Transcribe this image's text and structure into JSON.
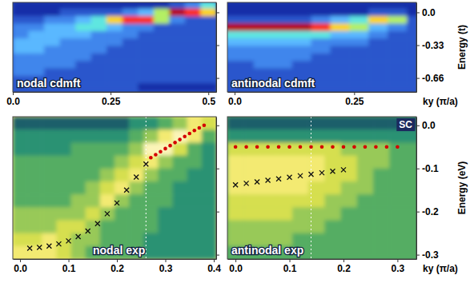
{
  "chart_data": [
    {
      "type": "heatmap",
      "title": "nodal cdmft",
      "color": "jet",
      "x": [
        0.02,
        0.06,
        0.1,
        0.14,
        0.18,
        0.22,
        0.26,
        0.3,
        0.34,
        0.38,
        0.42,
        0.46,
        0.5
      ],
      "y": [
        0.075,
        0,
        -0.075,
        -0.15,
        -0.225,
        -0.3,
        -0.375,
        -0.45,
        -0.525,
        -0.6,
        -0.675,
        -0.75
      ],
      "cells": [
        [
          1,
          1,
          1,
          1,
          1,
          1,
          1,
          1,
          1,
          1,
          2,
          3,
          5
        ],
        [
          1,
          1,
          1,
          2,
          2,
          2,
          2,
          3,
          4,
          6,
          9,
          8,
          7
        ],
        [
          2,
          2,
          3,
          3,
          4,
          5,
          7,
          8,
          8,
          6,
          3,
          2,
          2
        ],
        [
          3,
          3,
          4,
          4,
          5,
          5,
          4,
          3,
          3,
          2,
          2,
          2,
          2
        ],
        [
          3,
          4,
          4,
          4,
          4,
          3,
          3,
          3,
          2,
          2,
          2,
          2,
          2
        ],
        [
          4,
          4,
          4,
          3,
          3,
          3,
          3,
          2,
          2,
          2,
          2,
          2,
          2
        ],
        [
          4,
          4,
          3,
          3,
          3,
          3,
          2,
          2,
          2,
          2,
          2,
          2,
          2
        ],
        [
          3,
          3,
          3,
          3,
          3,
          2,
          2,
          2,
          2,
          2,
          2,
          2,
          2
        ],
        [
          3,
          3,
          3,
          3,
          2,
          2,
          2,
          2,
          2,
          2,
          2,
          2,
          2
        ],
        [
          3,
          3,
          2,
          2,
          2,
          2,
          2,
          2,
          2,
          2,
          2,
          2,
          2
        ],
        [
          2,
          2,
          2,
          2,
          2,
          2,
          2,
          2,
          2,
          2,
          2,
          2,
          2
        ],
        [
          2,
          2,
          2,
          2,
          2,
          2,
          2,
          2,
          1,
          1,
          1,
          1,
          1
        ]
      ],
      "zlim": [
        0,
        9
      ],
      "xlim": [
        0,
        0.52
      ],
      "ylim": [
        -0.8,
        0.1
      ],
      "xticks": [
        {
          "value": 0,
          "label": "0.0"
        },
        0.25,
        0.5
      ],
      "yticks": [
        {
          "value": 0,
          "label": "0.0"
        },
        -0.33,
        -0.66
      ],
      "tick_labels": "x"
    },
    {
      "type": "heatmap",
      "title": "antinodal cdmft",
      "color": "jet",
      "x": [
        -0.02,
        0.02,
        0.06,
        0.1,
        0.14,
        0.18,
        0.22,
        0.26,
        0.3,
        0.34,
        0.38
      ],
      "y": [
        0.075,
        0,
        -0.075,
        -0.15,
        -0.225,
        -0.3,
        -0.375,
        -0.45,
        -0.525,
        -0.6,
        -0.675,
        -0.75
      ],
      "cells": [
        [
          1,
          1,
          1,
          1,
          1,
          1,
          1,
          1,
          1,
          1,
          1
        ],
        [
          1,
          1,
          1,
          1,
          1,
          1,
          1,
          1,
          2,
          2,
          1
        ],
        [
          2,
          2,
          2,
          2,
          2,
          3,
          4,
          5,
          7,
          6,
          2
        ],
        [
          9,
          9,
          9,
          9,
          9,
          8,
          7,
          6,
          4,
          3,
          2
        ],
        [
          5,
          5,
          5,
          5,
          5,
          5,
          4,
          4,
          3,
          2,
          2
        ],
        [
          4,
          4,
          4,
          4,
          4,
          3,
          3,
          3,
          2,
          2,
          2
        ],
        [
          3,
          3,
          3,
          3,
          3,
          3,
          2,
          2,
          2,
          2,
          2
        ],
        [
          3,
          3,
          3,
          3,
          3,
          2,
          2,
          2,
          2,
          2,
          2
        ],
        [
          2,
          2,
          3,
          3,
          2,
          2,
          2,
          2,
          2,
          2,
          2
        ],
        [
          2,
          2,
          2,
          2,
          2,
          2,
          2,
          2,
          2,
          2,
          2
        ],
        [
          2,
          2,
          2,
          2,
          2,
          2,
          2,
          2,
          2,
          2,
          2
        ],
        [
          2,
          2,
          2,
          2,
          2,
          2,
          2,
          2,
          2,
          2,
          2
        ]
      ],
      "zlim": [
        0,
        9
      ],
      "xlim": [
        -0.015,
        0.38
      ],
      "ylim": [
        -0.8,
        0.1
      ],
      "xticks": [
        {
          "value": 0,
          "label": "0.0"
        },
        0.25
      ],
      "yticks": [
        {
          "value": 0,
          "label": "0.0"
        },
        -0.33,
        -0.66
      ],
      "x_label": "ky (π/a)",
      "y_label": "Energy (t)"
    },
    {
      "type": "heatmap",
      "title": "nodal exp",
      "color": "green-yellow",
      "x": [
        0,
        0.03,
        0.06,
        0.09,
        0.12,
        0.15,
        0.18,
        0.21,
        0.24,
        0.27,
        0.3,
        0.33,
        0.36,
        0.39
      ],
      "y": [
        0.005,
        -0.025,
        -0.055,
        -0.085,
        -0.115,
        -0.145,
        -0.175,
        -0.205,
        -0.235,
        -0.265,
        -0.295
      ],
      "cells": [
        [
          0,
          0,
          0,
          0,
          0,
          0,
          0,
          0,
          1,
          1,
          2,
          3,
          5,
          4
        ],
        [
          1,
          1,
          1,
          1,
          1,
          1,
          1,
          1,
          2,
          3,
          5,
          6,
          5,
          2
        ],
        [
          1,
          1,
          1,
          1,
          2,
          2,
          2,
          2,
          3,
          6,
          6,
          4,
          2,
          1
        ],
        [
          2,
          2,
          2,
          2,
          2,
          2,
          2,
          3,
          4,
          5,
          3,
          2,
          2,
          1
        ],
        [
          2,
          2,
          2,
          2,
          2,
          2,
          3,
          4,
          5,
          3,
          2,
          2,
          1,
          1
        ],
        [
          2,
          2,
          2,
          2,
          2,
          3,
          4,
          5,
          3,
          2,
          2,
          1,
          1,
          1
        ],
        [
          2,
          2,
          2,
          2,
          3,
          3,
          5,
          3,
          2,
          2,
          2,
          1,
          1,
          1
        ],
        [
          3,
          3,
          3,
          3,
          3,
          4,
          3,
          2,
          2,
          2,
          1,
          1,
          1,
          1
        ],
        [
          3,
          3,
          3,
          4,
          4,
          3,
          2,
          2,
          2,
          2,
          1,
          1,
          1,
          1
        ],
        [
          4,
          4,
          5,
          4,
          3,
          3,
          2,
          2,
          2,
          1,
          1,
          1,
          1,
          1
        ],
        [
          5,
          5,
          5,
          4,
          3,
          2,
          2,
          2,
          2,
          1,
          1,
          1,
          1,
          1
        ]
      ],
      "zlim": [
        0,
        8
      ],
      "xlim": [
        -0.015,
        0.405
      ],
      "ylim": [
        -0.31,
        0.02
      ],
      "xticks": [
        {
          "value": 0,
          "label": "0.0"
        },
        0.1,
        0.2,
        0.3,
        0.4
      ],
      "yticks": [
        {
          "value": 0,
          "label": "0.0"
        },
        -0.1,
        -0.2,
        -0.3
      ],
      "tick_labels": "x",
      "vlines": [
        0.26
      ],
      "series": [
        {
          "color": "#111111",
          "marker": "cross",
          "x": [
            0.02,
            0.04,
            0.06,
            0.08,
            0.1,
            0.12,
            0.14,
            0.16,
            0.18,
            0.2,
            0.22,
            0.24,
            0.26
          ],
          "values": [
            -0.285,
            -0.283,
            -0.28,
            -0.275,
            -0.268,
            -0.258,
            -0.245,
            -0.228,
            -0.205,
            -0.18,
            -0.15,
            -0.12,
            -0.09
          ]
        },
        {
          "color": "#d40000",
          "marker": "dot",
          "x": [
            0.27,
            0.28,
            0.29,
            0.3,
            0.31,
            0.32,
            0.33,
            0.34,
            0.35,
            0.36,
            0.37,
            0.38
          ],
          "values": [
            -0.075,
            -0.068,
            -0.061,
            -0.054,
            -0.047,
            -0.04,
            -0.033,
            -0.026,
            -0.019,
            -0.012,
            -0.006,
            0
          ]
        }
      ]
    },
    {
      "type": "heatmap",
      "title": "antinodal exp",
      "color": "green-yellow",
      "x": [
        0,
        0.03,
        0.06,
        0.09,
        0.12,
        0.15,
        0.18,
        0.21,
        0.24,
        0.27,
        0.3,
        0.33
      ],
      "y": [
        0.005,
        -0.025,
        -0.055,
        -0.085,
        -0.115,
        -0.145,
        -0.175,
        -0.205,
        -0.235,
        -0.265,
        -0.295
      ],
      "cells": [
        [
          0,
          0,
          0,
          0,
          0,
          0,
          0,
          0,
          0,
          0,
          0,
          0
        ],
        [
          1,
          1,
          1,
          1,
          1,
          1,
          1,
          1,
          1,
          1,
          1,
          1
        ],
        [
          4,
          4,
          4,
          4,
          4,
          4,
          4,
          3,
          3,
          3,
          2,
          2
        ],
        [
          5,
          5,
          5,
          5,
          5,
          5,
          4,
          4,
          3,
          3,
          2,
          2
        ],
        [
          5,
          5,
          5,
          5,
          5,
          5,
          4,
          4,
          3,
          2,
          2,
          2
        ],
        [
          5,
          5,
          5,
          5,
          5,
          4,
          4,
          3,
          3,
          2,
          2,
          2
        ],
        [
          4,
          4,
          4,
          4,
          4,
          4,
          3,
          3,
          2,
          2,
          2,
          2
        ],
        [
          4,
          4,
          4,
          4,
          3,
          3,
          3,
          2,
          2,
          2,
          2,
          2
        ],
        [
          3,
          3,
          3,
          3,
          3,
          3,
          2,
          2,
          2,
          2,
          2,
          2
        ],
        [
          3,
          3,
          3,
          3,
          2,
          2,
          2,
          2,
          2,
          2,
          2,
          2
        ],
        [
          2,
          2,
          2,
          2,
          2,
          2,
          2,
          2,
          2,
          2,
          2,
          2
        ]
      ],
      "zlim": [
        0,
        8
      ],
      "xlim": [
        -0.015,
        0.335
      ],
      "ylim": [
        -0.31,
        0.02
      ],
      "xticks": [
        {
          "value": 0,
          "label": "0.0"
        },
        0.1,
        0.2,
        0.3
      ],
      "yticks": [
        {
          "value": 0,
          "label": "0.0"
        },
        -0.1,
        -0.2,
        -0.3
      ],
      "x_label": "ky (π/a)",
      "y_label": "Energy (eV)",
      "annotation": "SC",
      "vlines": [
        0.14
      ],
      "series": [
        {
          "color": "#111111",
          "marker": "cross",
          "x": [
            0,
            0.02,
            0.04,
            0.06,
            0.08,
            0.1,
            0.12,
            0.14,
            0.16,
            0.18,
            0.2
          ],
          "values": [
            -0.138,
            -0.1345,
            -0.131,
            -0.1275,
            -0.124,
            -0.1205,
            -0.117,
            -0.1135,
            -0.11,
            -0.1065,
            -0.103
          ]
        },
        {
          "color": "#d40000",
          "marker": "dot",
          "x": [
            0,
            0.02,
            0.04,
            0.06,
            0.08,
            0.1,
            0.12,
            0.14,
            0.16,
            0.18,
            0.2,
            0.22,
            0.24,
            0.26,
            0.28,
            0.3
          ],
          "values": [
            -0.05,
            -0.05,
            -0.05,
            -0.05,
            -0.05,
            -0.05,
            -0.05,
            -0.05,
            -0.05,
            -0.05,
            -0.05,
            -0.05,
            -0.05,
            -0.05,
            -0.05,
            -0.05
          ]
        }
      ]
    }
  ]
}
